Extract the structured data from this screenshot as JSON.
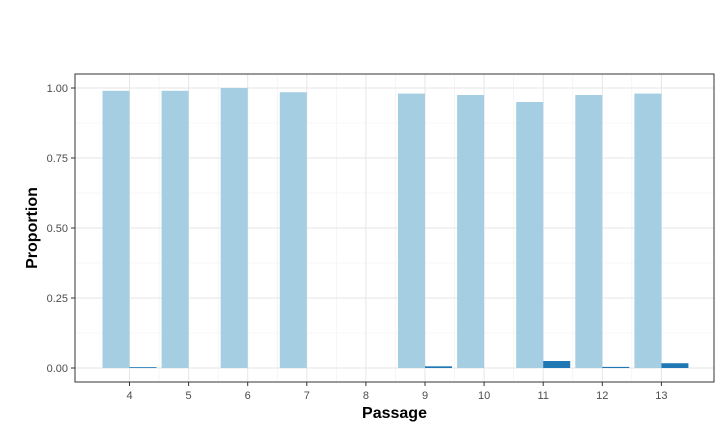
{
  "chart_data": {
    "type": "bar",
    "title": "",
    "xlabel": "Passage",
    "ylabel": "Proportion",
    "categories": [
      "4",
      "5",
      "6",
      "7",
      "8",
      "9",
      "10",
      "11",
      "12",
      "13"
    ],
    "series": [
      {
        "values": [
          0.99,
          0.99,
          1.0,
          0.985,
          0.0,
          0.98,
          0.975,
          0.95,
          0.975,
          0.98
        ],
        "color": "#a6cee3"
      },
      {
        "values": [
          0.003,
          0.0,
          0.0,
          0.0,
          0.0,
          0.006,
          0.0,
          0.025,
          0.004,
          0.017
        ],
        "color": "#1f78b4"
      }
    ],
    "ylim": [
      -0.05,
      1.05
    ],
    "yticks": [
      0.0,
      0.25,
      0.5,
      0.75,
      1.0
    ],
    "ytick_labels": [
      "0.00",
      "0.25",
      "0.50",
      "0.75",
      "1.00"
    ],
    "grid": true,
    "theme": "bw",
    "legend": "none"
  }
}
